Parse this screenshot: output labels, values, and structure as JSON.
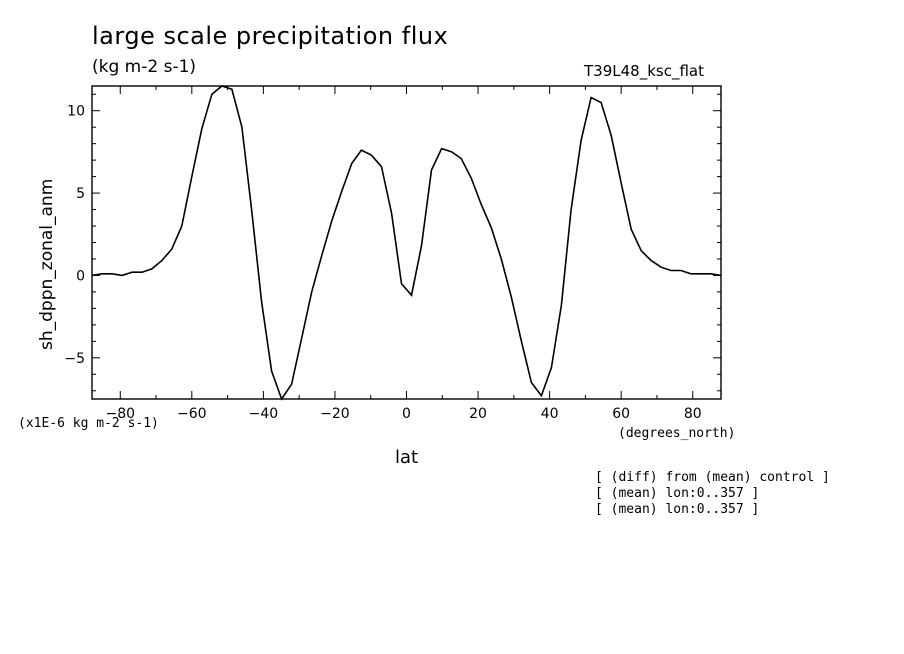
{
  "chart_data": {
    "type": "line",
    "title": "large scale precipitation flux",
    "subtitle": "(kg m-2 s-1)",
    "run_label": "T39L48_ksc_flat",
    "xlabel": "lat",
    "xunits": "(degrees_north)",
    "ylabel": "sh_dppn_zonal_anm",
    "yscale_label": "(x1E-6 kg m-2 s-1)",
    "xlim": [
      -87.9,
      87.9
    ],
    "ylim": [
      -7.5,
      11.5
    ],
    "xticks": [
      -80,
      -60,
      -40,
      -20,
      0,
      20,
      40,
      60,
      80
    ],
    "yticks": [
      -5,
      0,
      5,
      10
    ],
    "grid": false,
    "series": [
      {
        "x": [
          -87.9,
          -85.1,
          -82.3,
          -79.5,
          -76.7,
          -73.9,
          -71.2,
          -68.4,
          -65.6,
          -62.8,
          -60.0,
          -57.2,
          -54.4,
          -51.6,
          -48.8,
          -46.0,
          -43.3,
          -40.5,
          -37.7,
          -34.9,
          -32.1,
          -29.3,
          -26.5,
          -23.7,
          -20.9,
          -18.1,
          -15.3,
          -12.6,
          -9.8,
          -7.0,
          -4.2,
          -1.4,
          1.4,
          4.2,
          7.0,
          9.8,
          12.6,
          15.3,
          18.1,
          20.9,
          23.7,
          26.5,
          29.3,
          32.1,
          34.9,
          37.7,
          40.5,
          43.3,
          46.0,
          48.8,
          51.6,
          54.4,
          57.2,
          60.0,
          62.8,
          65.6,
          68.4,
          71.2,
          73.9,
          76.7,
          79.5,
          82.3,
          85.1,
          87.9
        ],
        "values": [
          0.0,
          0.1,
          0.1,
          0.0,
          0.2,
          0.2,
          0.4,
          0.9,
          1.6,
          3.0,
          6.0,
          8.9,
          11.0,
          11.5,
          11.3,
          9.0,
          4.0,
          -1.6,
          -5.8,
          -7.5,
          -6.6,
          -3.8,
          -1.0,
          1.2,
          3.3,
          5.1,
          6.8,
          7.6,
          7.3,
          6.6,
          3.8,
          -0.5,
          -1.2,
          1.8,
          6.4,
          7.7,
          7.5,
          7.1,
          5.9,
          4.3,
          2.9,
          1.0,
          -1.3,
          -4.0,
          -6.5,
          -7.3,
          -5.6,
          -1.8,
          4.0,
          8.2,
          10.8,
          10.5,
          8.5,
          5.6,
          2.8,
          1.5,
          0.9,
          0.5,
          0.3,
          0.3,
          0.1,
          0.1,
          0.1,
          0.0
        ]
      }
    ]
  },
  "notes": [
    "[ (diff) from (mean) control ]",
    "[ (mean) lon:0..357 ]",
    "[ (mean) lon:0..357 ]"
  ]
}
